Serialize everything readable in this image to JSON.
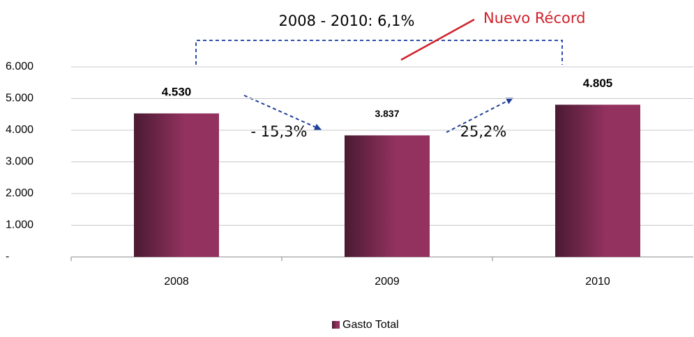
{
  "chart_data": {
    "type": "bar",
    "categories": [
      "2008",
      "2009",
      "2010"
    ],
    "values": [
      4530,
      3837,
      4805
    ],
    "value_labels": [
      "4.530",
      "3.837",
      "4.805"
    ],
    "color": "#93325f",
    "ylim": [
      0,
      6000
    ],
    "yticks": [
      {
        "value": 0,
        "label": "-"
      },
      {
        "value": 1000,
        "label": "1.000"
      },
      {
        "value": 2000,
        "label": "2.000"
      },
      {
        "value": 3000,
        "label": "3.000"
      },
      {
        "value": 4000,
        "label": "4.000"
      },
      {
        "value": 5000,
        "label": "5.000"
      },
      {
        "value": 6000,
        "label": "6.000"
      }
    ],
    "grid": true,
    "legend": "bottom",
    "series_name": "Gasto Total",
    "annotations": [
      "2008 - 2010: 6,1%",
      "Nuevo Récord",
      "- 15,3%",
      "25,2%"
    ]
  }
}
